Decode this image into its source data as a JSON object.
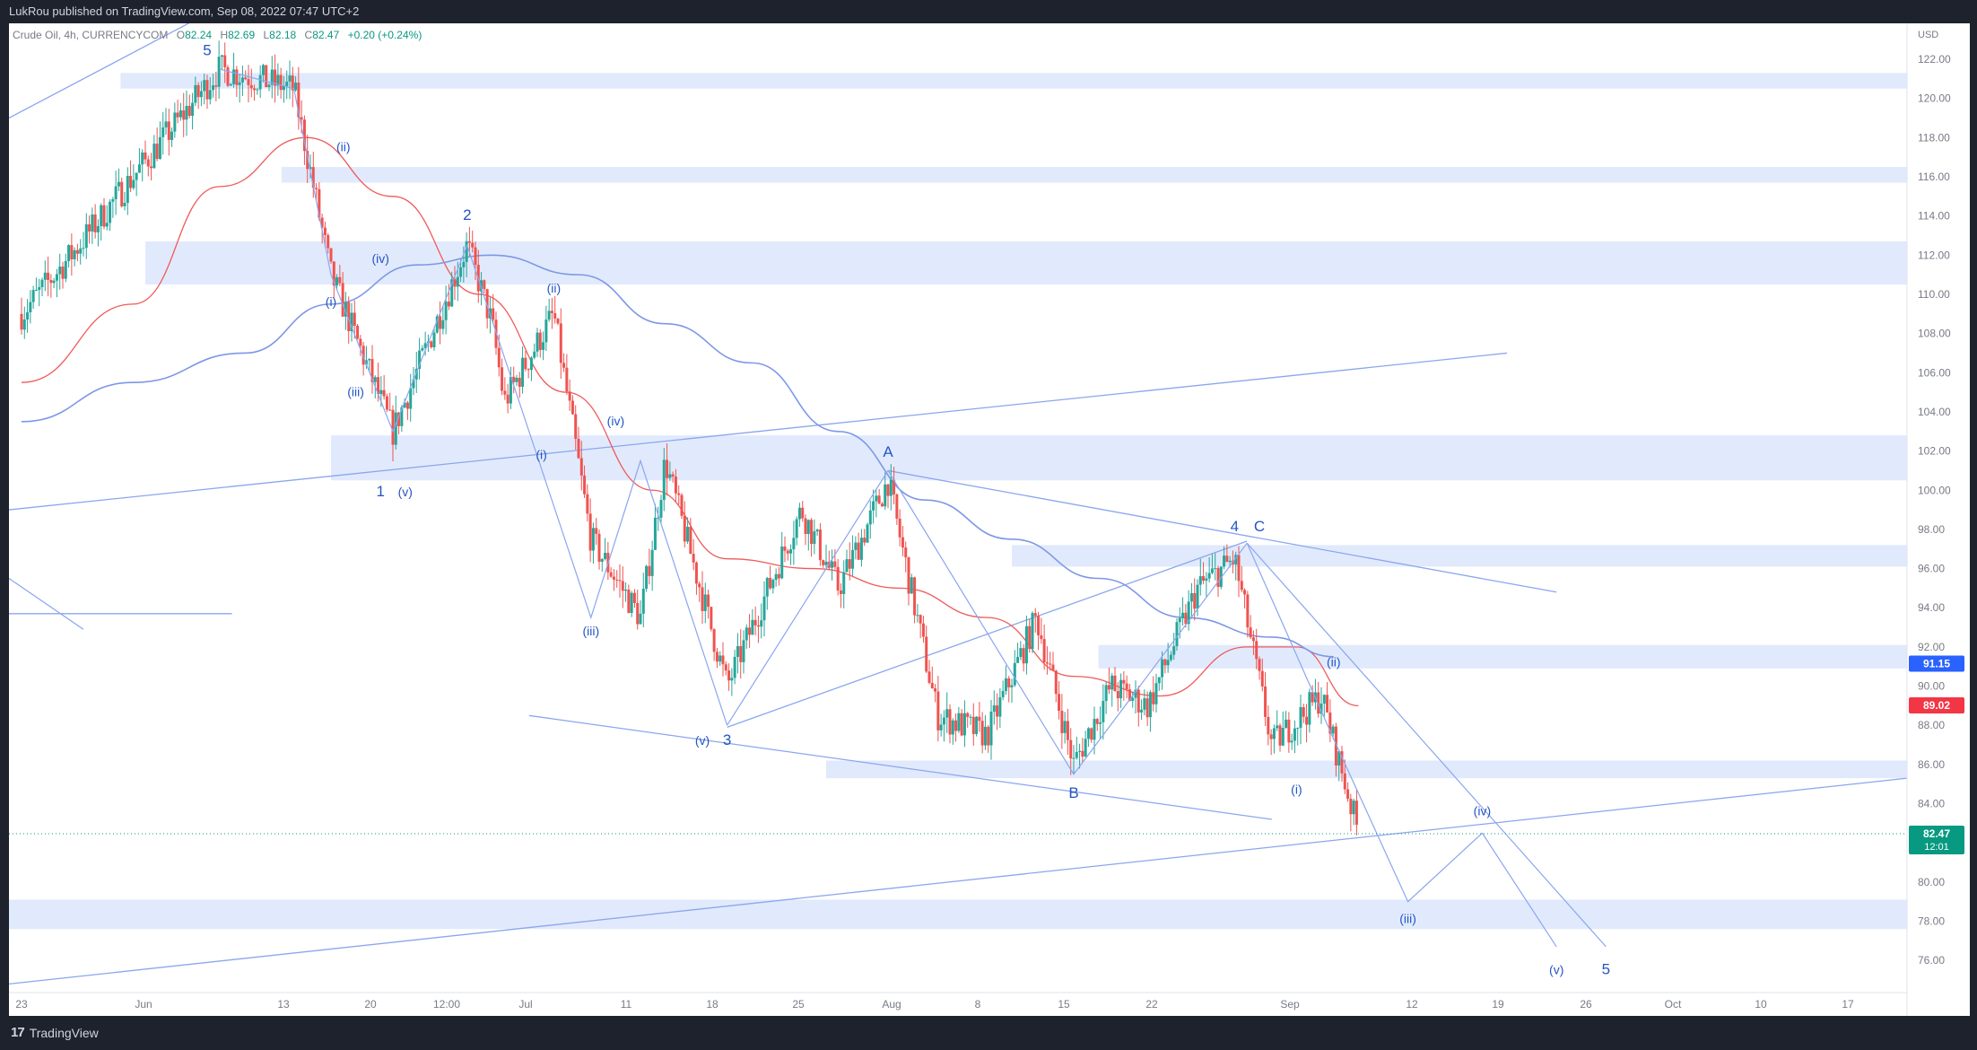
{
  "publisher_line": "LukRou published on TradingView.com, Sep 08, 2022 07:47 UTC+2",
  "footer": {
    "brand": "TradingView",
    "logo_glyph": "17"
  },
  "legend": {
    "symbol": "Crude Oil, 4h, CURRENCYCOM",
    "open": "82.24",
    "high": "82.69",
    "low": "82.18",
    "close": "82.47",
    "change": "+0.20 (+0.24%)"
  },
  "price_axis": {
    "currency": "USD",
    "ticks": [
      "122.00",
      "120.00",
      "118.00",
      "116.00",
      "114.00",
      "112.00",
      "110.00",
      "108.00",
      "106.00",
      "104.00",
      "102.00",
      "100.00",
      "98.00",
      "96.00",
      "94.00",
      "92.00",
      "90.00",
      "88.00",
      "86.00",
      "84.00",
      "82.00",
      "80.00",
      "78.00",
      "76.00"
    ],
    "badges": [
      {
        "value": "91.15",
        "color": "#2962ff"
      },
      {
        "value": "89.02",
        "color": "#f23645"
      },
      {
        "value": "82.47",
        "sub": "12:01",
        "color": "#089981"
      }
    ]
  },
  "time_axis": {
    "ticks": [
      "23",
      "Jun",
      "13",
      "20",
      "12:00",
      "Jul",
      "11",
      "18",
      "25",
      "Aug",
      "8",
      "15",
      "22",
      "Sep",
      "12",
      "19",
      "26",
      "Oct",
      "10",
      "17"
    ]
  },
  "colors": {
    "up": "#26a69a",
    "down": "#ef5350",
    "zone": "#dce6fb",
    "wave": "#8ba6f0",
    "label": "#2455c3",
    "ma_fast": "#f05a5a",
    "ma_slow": "#7e97e6"
  },
  "chart_data": {
    "type": "candlestick",
    "title": "Crude Oil, 4h, CURRENCYCOM",
    "ylim": [
      75,
      123
    ],
    "y_unit": "USD",
    "last_price": 82.47,
    "close_path": [
      {
        "date": "2022-05-23",
        "price": 109
      },
      {
        "date": "2022-05-27",
        "price": 112
      },
      {
        "date": "2022-06-01",
        "price": 116
      },
      {
        "date": "2022-06-08",
        "price": 121.5
      },
      {
        "date": "2022-06-14",
        "price": 120.5
      },
      {
        "date": "2022-06-17",
        "price": 111
      },
      {
        "date": "2022-06-22",
        "price": 103
      },
      {
        "date": "2022-06-28",
        "price": 112.5
      },
      {
        "date": "2022-06-30",
        "price": 108.5
      },
      {
        "date": "2022-07-01",
        "price": 104.5
      },
      {
        "date": "2022-07-05",
        "price": 109
      },
      {
        "date": "2022-07-08",
        "price": 97.5
      },
      {
        "date": "2022-07-12",
        "price": 93.5
      },
      {
        "date": "2022-07-14",
        "price": 101.5
      },
      {
        "date": "2022-07-19",
        "price": 90
      },
      {
        "date": "2022-07-25",
        "price": 99
      },
      {
        "date": "2022-07-28",
        "price": 95
      },
      {
        "date": "2022-08-01",
        "price": 100.5
      },
      {
        "date": "2022-08-05",
        "price": 88.5
      },
      {
        "date": "2022-08-09",
        "price": 87.5
      },
      {
        "date": "2022-08-13",
        "price": 93.5
      },
      {
        "date": "2022-08-16",
        "price": 86
      },
      {
        "date": "2022-08-19",
        "price": 90
      },
      {
        "date": "2022-08-22",
        "price": 89
      },
      {
        "date": "2022-08-26",
        "price": 95
      },
      {
        "date": "2022-08-29",
        "price": 96.5
      },
      {
        "date": "2022-09-01",
        "price": 87
      },
      {
        "date": "2022-09-05",
        "price": 89.5
      },
      {
        "date": "2022-09-08",
        "price": 82.5
      }
    ],
    "moving_averages": [
      {
        "color": "#f05a5a",
        "points": [
          {
            "date": "2022-05-23",
            "price": 105.5
          },
          {
            "date": "2022-06-01",
            "price": 109.5
          },
          {
            "date": "2022-06-08",
            "price": 115.5
          },
          {
            "date": "2022-06-15",
            "price": 118
          },
          {
            "date": "2022-06-22",
            "price": 115
          },
          {
            "date": "2022-06-29",
            "price": 110
          },
          {
            "date": "2022-07-06",
            "price": 105
          },
          {
            "date": "2022-07-13",
            "price": 100
          },
          {
            "date": "2022-07-19",
            "price": 96.5
          },
          {
            "date": "2022-07-26",
            "price": 96
          },
          {
            "date": "2022-08-02",
            "price": 95
          },
          {
            "date": "2022-08-09",
            "price": 93.5
          },
          {
            "date": "2022-08-16",
            "price": 90.5
          },
          {
            "date": "2022-08-23",
            "price": 89.5
          },
          {
            "date": "2022-08-30",
            "price": 92
          },
          {
            "date": "2022-09-03",
            "price": 92
          },
          {
            "date": "2022-09-08",
            "price": 89
          }
        ]
      },
      {
        "color": "#7e97e6",
        "points": [
          {
            "date": "2022-05-23",
            "price": 103.5
          },
          {
            "date": "2022-06-01",
            "price": 105.5
          },
          {
            "date": "2022-06-10",
            "price": 107
          },
          {
            "date": "2022-06-17",
            "price": 109.5
          },
          {
            "date": "2022-06-24",
            "price": 111.5
          },
          {
            "date": "2022-06-30",
            "price": 112
          },
          {
            "date": "2022-07-07",
            "price": 111
          },
          {
            "date": "2022-07-14",
            "price": 108.5
          },
          {
            "date": "2022-07-21",
            "price": 106.5
          },
          {
            "date": "2022-07-28",
            "price": 103
          },
          {
            "date": "2022-08-04",
            "price": 99.5
          },
          {
            "date": "2022-08-11",
            "price": 97.5
          },
          {
            "date": "2022-08-18",
            "price": 95.5
          },
          {
            "date": "2022-08-25",
            "price": 93.5
          },
          {
            "date": "2022-09-01",
            "price": 92.5
          },
          {
            "date": "2022-09-06",
            "price": 91.5
          }
        ]
      }
    ],
    "zones": [
      {
        "x1": "2022-05-31",
        "x2": "end",
        "y1": 120.5,
        "y2": 121.3
      },
      {
        "x1": "2022-06-13",
        "x2": "2022-10-24",
        "y1": 115.7,
        "y2": 116.5
      },
      {
        "x1": "2022-06-02",
        "x2": "end",
        "y1": 110.5,
        "y2": 112.7
      },
      {
        "x1": "2022-06-17",
        "x2": "end",
        "y1": 100.5,
        "y2": 102.8
      },
      {
        "x1": "2022-08-11",
        "x2": "end",
        "y1": 96.1,
        "y2": 97.2
      },
      {
        "x1": "2022-08-18",
        "x2": "end",
        "y1": 90.9,
        "y2": 92.1
      },
      {
        "x1": "2022-07-27",
        "x2": "end",
        "y1": 85.3,
        "y2": 86.2
      },
      {
        "x1": "start",
        "x2": "end",
        "y1": 77.6,
        "y2": 79.1
      }
    ],
    "trend_lines": [
      {
        "from": {
          "date": "start",
          "price": 99
        },
        "to": {
          "date": "2022-09-20",
          "price": 107
        }
      },
      {
        "from": {
          "date": "start",
          "price": 74.8
        },
        "to": {
          "date": "end",
          "price": 85.3
        }
      },
      {
        "from": {
          "date": "2022-07-03",
          "price": 88.5
        },
        "to": {
          "date": "2022-09-01",
          "price": 83.2
        }
      },
      {
        "from": {
          "date": "2022-08-01",
          "price": 101
        },
        "to": {
          "date": "2022-09-24",
          "price": 94.8
        }
      },
      {
        "from": {
          "date": "2022-07-19",
          "price": 87.9
        },
        "to": {
          "date": "2022-08-30",
          "price": 97.4
        }
      },
      {
        "from": {
          "date": "start",
          "price": 93.7
        },
        "to": {
          "date": "2022-06-09",
          "price": 93.7
        }
      },
      {
        "from": {
          "date": "start",
          "price": 95.5
        },
        "to": {
          "date": "2022-05-28",
          "price": 92.9
        }
      },
      {
        "from": {
          "date": "start",
          "price": 119
        },
        "to": {
          "date": "2022-06-06",
          "price": 124
        }
      }
    ],
    "wave_paths": [
      {
        "points": [
          {
            "date": "2022-06-08",
            "price": 121.5
          },
          {
            "date": "2022-06-14",
            "price": 120.5
          },
          {
            "date": "2022-06-17",
            "price": 111
          },
          {
            "date": "2022-06-22",
            "price": 103
          },
          {
            "date": "2022-06-28",
            "price": 112.5
          },
          {
            "date": "2022-07-08",
            "price": 93.5
          },
          {
            "date": "2022-07-12",
            "price": 101.5
          },
          {
            "date": "2022-07-19",
            "price": 88
          }
        ]
      },
      {
        "points": [
          {
            "date": "2022-07-19",
            "price": 88
          },
          {
            "date": "2022-08-01",
            "price": 101
          },
          {
            "date": "2022-08-16",
            "price": 85.5
          },
          {
            "date": "2022-08-30",
            "price": 97.3
          }
        ]
      },
      {
        "points": [
          {
            "date": "2022-08-30",
            "price": 97.3
          },
          {
            "date": "2022-09-06",
            "price": 87.3
          },
          {
            "date": "2022-09-12",
            "price": 79
          },
          {
            "date": "2022-09-18",
            "price": 82.5
          },
          {
            "date": "2022-09-24",
            "price": 76.7
          }
        ]
      },
      {
        "points": [
          {
            "date": "2022-08-30",
            "price": 97.3
          },
          {
            "date": "2022-09-28",
            "price": 76.7
          }
        ]
      }
    ],
    "wave_labels": [
      {
        "text": "5",
        "date": "2022-06-07",
        "price": 122.2,
        "size": 17
      },
      {
        "text": "(ii)",
        "date": "2022-06-18",
        "price": 117.3
      },
      {
        "text": "(iv)",
        "date": "2022-06-21",
        "price": 111.6
      },
      {
        "text": "(i)",
        "date": "2022-06-17",
        "price": 109.4
      },
      {
        "text": "(iii)",
        "date": "2022-06-19",
        "price": 104.8
      },
      {
        "text": "1",
        "date": "2022-06-21",
        "price": 99.7,
        "size": 17
      },
      {
        "text": "(v)",
        "date": "2022-06-23",
        "price": 99.7
      },
      {
        "text": "2",
        "date": "2022-06-28",
        "price": 113.8,
        "size": 17
      },
      {
        "text": "(ii)",
        "date": "2022-07-05",
        "price": 110.1
      },
      {
        "text": "(i)",
        "date": "2022-07-04",
        "price": 101.6
      },
      {
        "text": "(iv)",
        "date": "2022-07-10",
        "price": 103.3
      },
      {
        "text": "(iii)",
        "date": "2022-07-08",
        "price": 92.6
      },
      {
        "text": "(v)",
        "date": "2022-07-17",
        "price": 87.0
      },
      {
        "text": "3",
        "date": "2022-07-19",
        "price": 87.0,
        "size": 17
      },
      {
        "text": "A",
        "date": "2022-08-01",
        "price": 101.7,
        "size": 17
      },
      {
        "text": "B",
        "date": "2022-08-16",
        "price": 84.3,
        "size": 17
      },
      {
        "text": "4",
        "date": "2022-08-29",
        "price": 97.9,
        "size": 17
      },
      {
        "text": "C",
        "date": "2022-08-31",
        "price": 97.9,
        "size": 17
      },
      {
        "text": "(ii)",
        "date": "2022-09-06",
        "price": 91.0
      },
      {
        "text": "(i)",
        "date": "2022-09-03",
        "price": 84.5
      },
      {
        "text": "(iv)",
        "date": "2022-09-18",
        "price": 83.4
      },
      {
        "text": "(iii)",
        "date": "2022-09-12",
        "price": 77.9
      },
      {
        "text": "(v)",
        "date": "2022-09-24",
        "price": 75.3
      },
      {
        "text": "5",
        "date": "2022-09-28",
        "price": 75.3,
        "size": 17
      }
    ]
  }
}
